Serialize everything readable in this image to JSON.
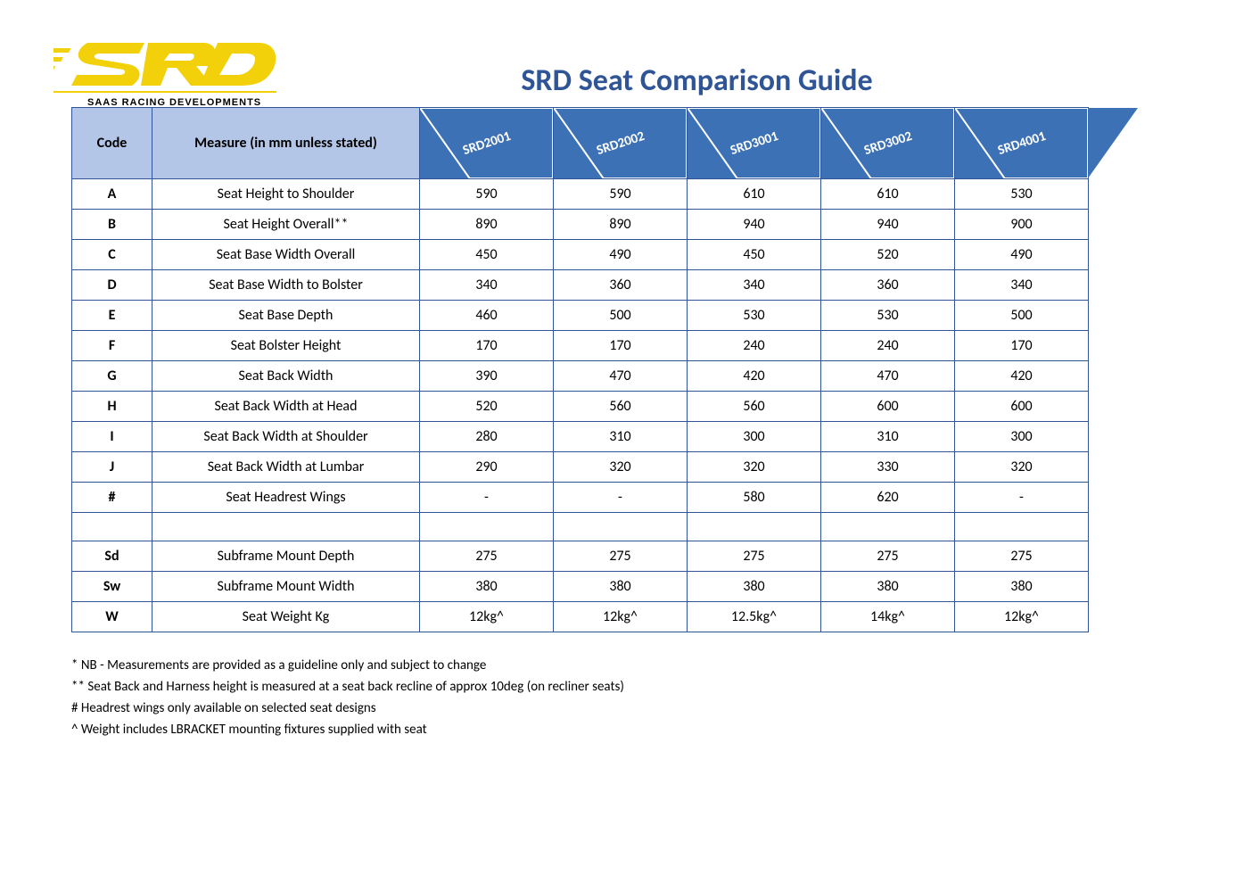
{
  "title": "SRD Seat Comparison Guide",
  "logo": {
    "tagline": "SAAS RACING DEVELOPMENTS",
    "brand_color": "#f2d00a",
    "text_color": "#000000"
  },
  "table": {
    "header_bg": "#b4c6e7",
    "product_header_bg": "#3d71b6",
    "border_color": "#2f5597",
    "columns": {
      "code": "Code",
      "measure": "Measure (in mm unless stated)"
    },
    "products": [
      "SRD2001",
      "SRD2002",
      "SRD3001",
      "SRD3002",
      "SRD4001"
    ],
    "rows_main": [
      {
        "code": "A",
        "measure": "Seat Height to Shoulder",
        "vals": [
          "590",
          "590",
          "610",
          "610",
          "530"
        ]
      },
      {
        "code": "B",
        "measure": "Seat Height Overall**",
        "vals": [
          "890",
          "890",
          "940",
          "940",
          "900"
        ]
      },
      {
        "code": "C",
        "measure": "Seat Base Width Overall",
        "vals": [
          "450",
          "490",
          "450",
          "520",
          "490"
        ]
      },
      {
        "code": "D",
        "measure": "Seat Base Width to Bolster",
        "vals": [
          "340",
          "360",
          "340",
          "360",
          "340"
        ]
      },
      {
        "code": "E",
        "measure": "Seat Base Depth",
        "vals": [
          "460",
          "500",
          "530",
          "530",
          "500"
        ]
      },
      {
        "code": "F",
        "measure": "Seat Bolster Height",
        "vals": [
          "170",
          "170",
          "240",
          "240",
          "170"
        ]
      },
      {
        "code": "G",
        "measure": "Seat Back Width",
        "vals": [
          "390",
          "470",
          "420",
          "470",
          "420"
        ]
      },
      {
        "code": "H",
        "measure": "Seat Back Width at Head",
        "vals": [
          "520",
          "560",
          "560",
          "600",
          "600"
        ]
      },
      {
        "code": "I",
        "measure": "Seat Back Width at Shoulder",
        "vals": [
          "280",
          "310",
          "300",
          "310",
          "300"
        ]
      },
      {
        "code": "J",
        "measure": "Seat Back Width at Lumbar",
        "vals": [
          "290",
          "320",
          "320",
          "330",
          "320"
        ]
      },
      {
        "code": "#",
        "measure": "Seat Headrest Wings",
        "vals": [
          "-",
          "-",
          "580",
          "620",
          "-"
        ]
      }
    ],
    "rows_footer": [
      {
        "code": "Sd",
        "measure": "Subframe Mount Depth",
        "vals": [
          "275",
          "275",
          "275",
          "275",
          "275"
        ]
      },
      {
        "code": "Sw",
        "measure": "Subframe Mount Width",
        "vals": [
          "380",
          "380",
          "380",
          "380",
          "380"
        ]
      },
      {
        "code": "W",
        "measure": "Seat Weight Kg",
        "vals": [
          "12kg^",
          "12kg^",
          "12.5kg^",
          "14kg^",
          "12kg^"
        ]
      }
    ]
  },
  "footnotes": [
    "* NB - Measurements are provided as a guideline only and subject to change",
    "** Seat Back and Harness height is measured at a seat back recline of approx 10deg (on recliner seats)",
    "# Headrest wings only available on selected seat designs",
    "^ Weight includes LBRACKET mounting fixtures supplied with seat"
  ]
}
